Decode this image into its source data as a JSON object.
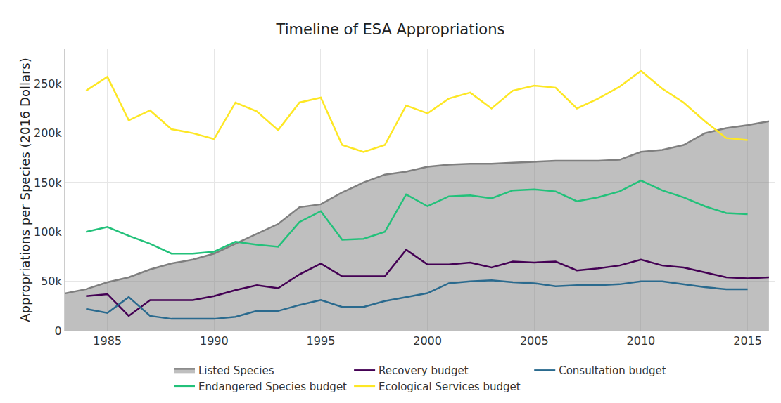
{
  "chart_data": {
    "type": "line",
    "title": "Timeline of ESA Appropriations",
    "y_label": "Appropriations per Species (2016 Dollars)",
    "x": [
      1983,
      1984,
      1985,
      1986,
      1987,
      1988,
      1989,
      1990,
      1991,
      1992,
      1993,
      1994,
      1995,
      1996,
      1997,
      1998,
      1999,
      2000,
      2001,
      2002,
      2003,
      2004,
      2005,
      2006,
      2007,
      2008,
      2009,
      2010,
      2011,
      2012,
      2013,
      2014,
      2015,
      2016
    ],
    "series": [
      {
        "name": "Listed Species",
        "type": "area",
        "color": "#7f7f7f",
        "values": [
          37600,
          42000,
          49000,
          54000,
          62000,
          68000,
          72000,
          78000,
          88000,
          98000,
          108000,
          125000,
          128000,
          140000,
          150000,
          158000,
          161000,
          166000,
          168000,
          169000,
          169000,
          170000,
          171000,
          172000,
          172000,
          172000,
          173000,
          181000,
          183000,
          188000,
          200000,
          205000,
          208000,
          212000
        ]
      },
      {
        "name": "Recovery budget",
        "color": "#440154",
        "values": [
          null,
          35000,
          37000,
          15000,
          31000,
          31000,
          31000,
          35000,
          41000,
          46000,
          43000,
          57000,
          68000,
          55000,
          55000,
          55000,
          82000,
          67000,
          67000,
          69000,
          64000,
          70000,
          69000,
          70000,
          61000,
          63000,
          66000,
          72000,
          66000,
          64000,
          59000,
          54000,
          53000,
          54000
        ]
      },
      {
        "name": "Consultation budget",
        "color": "#2a6a8e",
        "values": [
          null,
          22000,
          18000,
          34000,
          15000,
          12000,
          12000,
          12000,
          14000,
          20000,
          20000,
          26000,
          31000,
          24000,
          24000,
          30000,
          34000,
          38000,
          48000,
          50000,
          51000,
          49000,
          48000,
          45000,
          46000,
          46000,
          47000,
          50000,
          50000,
          47000,
          44000,
          42000,
          42000,
          null
        ]
      },
      {
        "name": "Endangered Species budget",
        "color": "#22c17a",
        "values": [
          null,
          100000,
          105000,
          96000,
          88000,
          78000,
          78000,
          80000,
          90000,
          87000,
          85000,
          110000,
          121000,
          92000,
          93000,
          100000,
          138000,
          126000,
          136000,
          137000,
          134000,
          142000,
          143000,
          141000,
          131000,
          135000,
          141000,
          152000,
          142000,
          135000,
          126000,
          119000,
          118000,
          null
        ]
      },
      {
        "name": "Ecological Services budget",
        "color": "#fde725",
        "values": [
          null,
          243000,
          257000,
          213000,
          223000,
          204000,
          200000,
          194000,
          231000,
          222000,
          203000,
          231000,
          236000,
          188000,
          181000,
          188000,
          228000,
          220000,
          235000,
          241000,
          225000,
          243000,
          248000,
          246000,
          225000,
          235000,
          247000,
          263000,
          245000,
          231000,
          212000,
          195000,
          193000,
          null
        ]
      }
    ],
    "xlim": [
      1983,
      2016.3
    ],
    "xticks": [
      1985,
      1990,
      1995,
      2000,
      2005,
      2010,
      2015
    ],
    "ylim": [
      0,
      285000
    ],
    "yticks": [
      0,
      {
        "value": 50000,
        "label": "50k"
      },
      {
        "value": 100000,
        "label": "100k"
      },
      {
        "value": 150000,
        "label": "150k"
      },
      {
        "value": 200000,
        "label": "200k"
      },
      {
        "value": 250000,
        "label": "250k"
      }
    ],
    "grid": true,
    "legend": "bottom"
  }
}
